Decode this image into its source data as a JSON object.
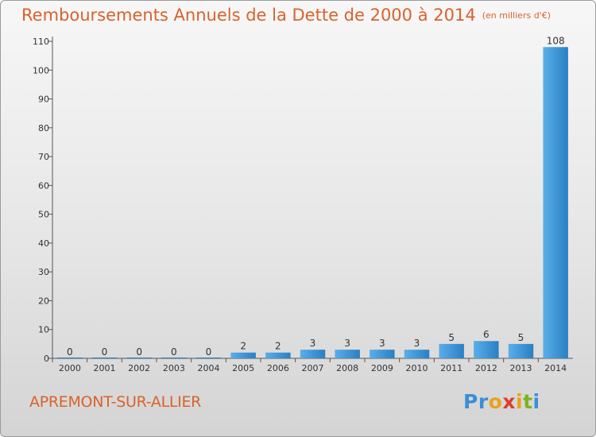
{
  "title": "Remboursements Annuels de la Dette de 2000 à 2014",
  "unit": "(en milliers d'€)",
  "place": "APREMONT-SUR-ALLIER",
  "logo": {
    "text": "Proxiti",
    "colors": [
      "#3a8fd6",
      "#3a8fd6",
      "#e8a21e",
      "#e23b2e",
      "#e8a21e",
      "#7ab51d",
      "#3a8fd6"
    ]
  },
  "colors": {
    "accent": "#d9622b",
    "bar_light": "#5aaee8",
    "bar_dark": "#2a7fc4"
  },
  "chart_data": {
    "type": "bar",
    "categories": [
      "2000",
      "2001",
      "2002",
      "2003",
      "2004",
      "2005",
      "2006",
      "2007",
      "2008",
      "2009",
      "2010",
      "2011",
      "2012",
      "2013",
      "2014"
    ],
    "values": [
      0,
      0,
      0,
      0,
      0,
      2,
      2,
      3,
      3,
      3,
      3,
      5,
      6,
      5,
      108
    ],
    "ylim": [
      0,
      110
    ],
    "yticks": [
      0,
      10,
      20,
      30,
      40,
      50,
      60,
      70,
      80,
      90,
      100,
      110
    ],
    "grid": false,
    "legend": "none"
  }
}
